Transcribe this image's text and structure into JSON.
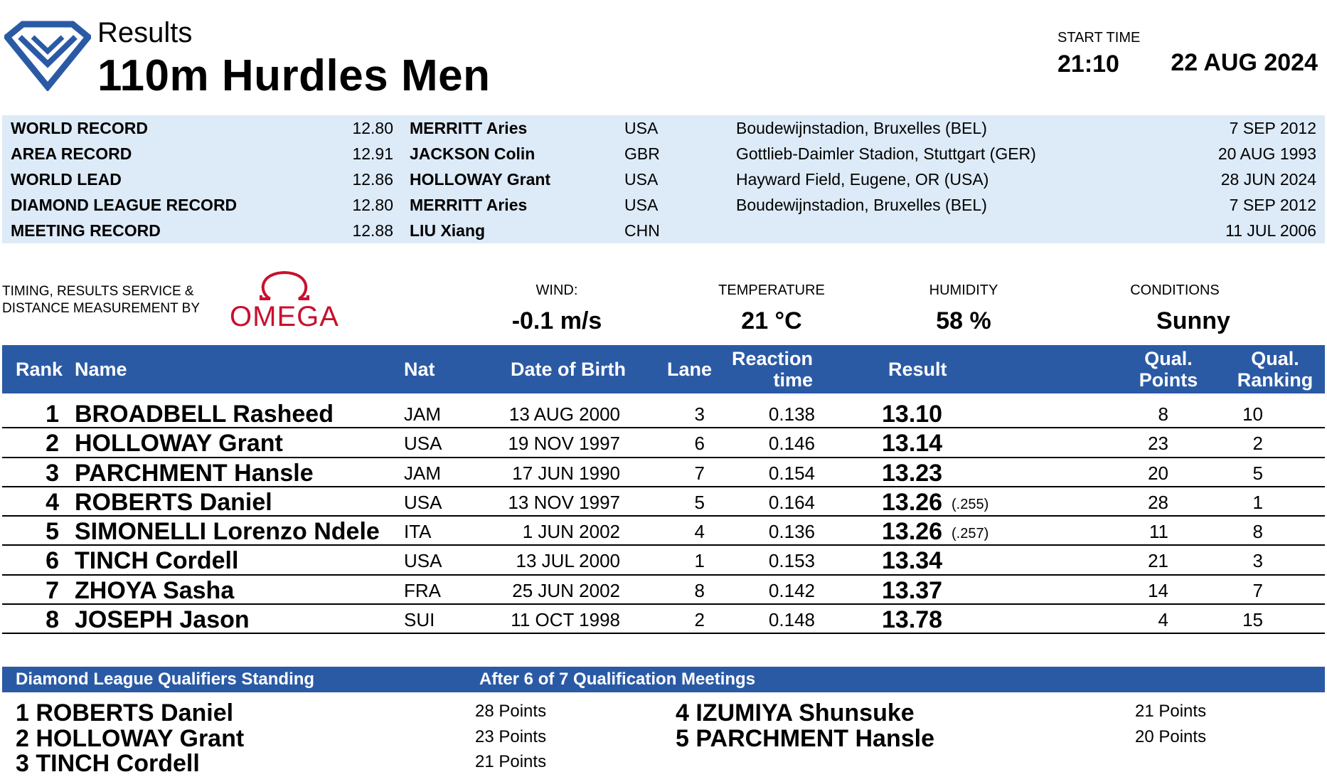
{
  "header": {
    "results_label": "Results",
    "event_title": "110m Hurdles Men",
    "start_time_label": "START TIME",
    "start_time": "21:10",
    "date": "22 AUG 2024",
    "logo_icon": "diamond-league-logo-icon",
    "accent_color": "#2b5aa5"
  },
  "records": [
    {
      "name": "WORLD RECORD",
      "value": "12.80",
      "holder": "MERRITT Aries",
      "nat": "USA",
      "venue": "Boudewijnstadion, Bruxelles (BEL)",
      "date": "7 SEP 2012"
    },
    {
      "name": "AREA RECORD",
      "value": "12.91",
      "holder": "JACKSON Colin",
      "nat": "GBR",
      "venue": "Gottlieb-Daimler Stadion, Stuttgart (GER)",
      "date": "20 AUG 1993"
    },
    {
      "name": "WORLD LEAD",
      "value": "12.86",
      "holder": "HOLLOWAY Grant",
      "nat": "USA",
      "venue": "Hayward Field, Eugene, OR (USA)",
      "date": "28 JUN 2024"
    },
    {
      "name": "DIAMOND LEAGUE RECORD",
      "value": "12.80",
      "holder": "MERRITT Aries",
      "nat": "USA",
      "venue": "Boudewijnstadion, Bruxelles (BEL)",
      "date": "7 SEP 2012"
    },
    {
      "name": "MEETING RECORD",
      "value": "12.88",
      "holder": "LIU Xiang",
      "nat": "CHN",
      "venue": "",
      "date": "11 JUL 2006"
    }
  ],
  "timing": {
    "line1": "TIMING, RESULTS SERVICE &",
    "line2": "DISTANCE MEASUREMENT BY",
    "brand": "OMEGA",
    "brand_color": "#c8102e"
  },
  "conditions": {
    "wind_label": "WIND:",
    "wind": "-0.1 m/s",
    "temperature_label": "TEMPERATURE",
    "temperature": "21 °C",
    "humidity_label": "HUMIDITY",
    "humidity": "58 %",
    "conditions_label": "CONDITIONS",
    "conditions": "Sunny"
  },
  "table": {
    "headers": {
      "rank": "Rank",
      "name": "Name",
      "nat": "Nat",
      "dob": "Date of Birth",
      "lane": "Lane",
      "reaction_1": "Reaction",
      "reaction_2": "time",
      "result": "Result",
      "qual_points_1": "Qual.",
      "qual_points_2": "Points",
      "qual_ranking_1": "Qual.",
      "qual_ranking_2": "Ranking"
    },
    "rows": [
      {
        "rank": "1",
        "name": "BROADBELL Rasheed",
        "nat": "JAM",
        "dob": "13 AUG 2000",
        "lane": "3",
        "reaction": "0.138",
        "result": "13.10",
        "tie": "",
        "points": "8",
        "ranking": "10"
      },
      {
        "rank": "2",
        "name": "HOLLOWAY Grant",
        "nat": "USA",
        "dob": "19 NOV 1997",
        "lane": "6",
        "reaction": "0.146",
        "result": "13.14",
        "tie": "",
        "points": "23",
        "ranking": "2"
      },
      {
        "rank": "3",
        "name": "PARCHMENT Hansle",
        "nat": "JAM",
        "dob": "17 JUN 1990",
        "lane": "7",
        "reaction": "0.154",
        "result": "13.23",
        "tie": "",
        "points": "20",
        "ranking": "5"
      },
      {
        "rank": "4",
        "name": "ROBERTS Daniel",
        "nat": "USA",
        "dob": "13 NOV 1997",
        "lane": "5",
        "reaction": "0.164",
        "result": "13.26",
        "tie": "(.255)",
        "points": "28",
        "ranking": "1"
      },
      {
        "rank": "5",
        "name": "SIMONELLI Lorenzo Ndele",
        "nat": "ITA",
        "dob": "1 JUN 2002",
        "lane": "4",
        "reaction": "0.136",
        "result": "13.26",
        "tie": "(.257)",
        "points": "11",
        "ranking": "8"
      },
      {
        "rank": "6",
        "name": "TINCH Cordell",
        "nat": "USA",
        "dob": "13 JUL 2000",
        "lane": "1",
        "reaction": "0.153",
        "result": "13.34",
        "tie": "",
        "points": "21",
        "ranking": "3"
      },
      {
        "rank": "7",
        "name": "ZHOYA Sasha",
        "nat": "FRA",
        "dob": "25 JUN 2002",
        "lane": "8",
        "reaction": "0.142",
        "result": "13.37",
        "tie": "",
        "points": "14",
        "ranking": "7"
      },
      {
        "rank": "8",
        "name": "JOSEPH Jason",
        "nat": "SUI",
        "dob": "11 OCT 1998",
        "lane": "2",
        "reaction": "0.148",
        "result": "13.78",
        "tie": "",
        "points": "4",
        "ranking": "15"
      }
    ]
  },
  "standing": {
    "title": "Diamond League Qualifiers Standing",
    "subtitle": "After 6 of 7 Qualification Meetings",
    "items": [
      {
        "text": "1 ROBERTS Daniel",
        "points": "28 Points"
      },
      {
        "text": "2 HOLLOWAY Grant",
        "points": "23 Points"
      },
      {
        "text": "3 TINCH Cordell",
        "points": "21 Points"
      },
      {
        "text": "4 IZUMIYA Shunsuke",
        "points": "21 Points"
      },
      {
        "text": "5 PARCHMENT Hansle",
        "points": "20 Points"
      }
    ]
  }
}
